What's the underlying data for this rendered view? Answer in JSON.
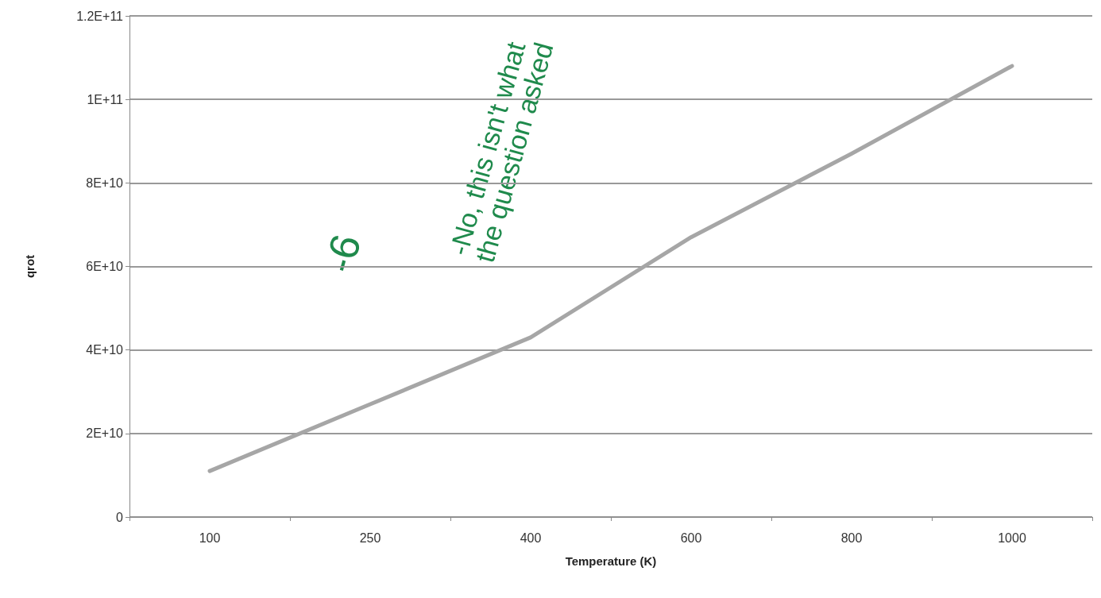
{
  "chart_data": {
    "type": "line",
    "xlabel": "Temperature (K)",
    "ylabel": "qrot",
    "categories": [
      "100",
      "250",
      "400",
      "600",
      "800",
      "1000"
    ],
    "series": [
      {
        "color": "#a6a6a6",
        "values": [
          11000000000.0,
          27000000000.0,
          43000000000.0,
          67000000000.0,
          87000000000.0,
          108000000000.0
        ]
      }
    ],
    "ylim": [
      0,
      120000000000.0
    ],
    "yticks": [
      {
        "value": 0,
        "label": "0"
      },
      {
        "value": 20000000000.0,
        "label": "2E+10"
      },
      {
        "value": 40000000000.0,
        "label": "4E+10"
      },
      {
        "value": 60000000000.0,
        "label": "6E+10"
      },
      {
        "value": 80000000000.0,
        "label": "8E+10"
      },
      {
        "value": 100000000000.0,
        "label": "1E+11"
      },
      {
        "value": 120000000000.0,
        "label": "1.2E+11"
      }
    ],
    "grid": "y",
    "marker": "none",
    "line_style": "solid",
    "annotations": [
      "-6",
      "-No, this isn't what the question asked"
    ]
  }
}
